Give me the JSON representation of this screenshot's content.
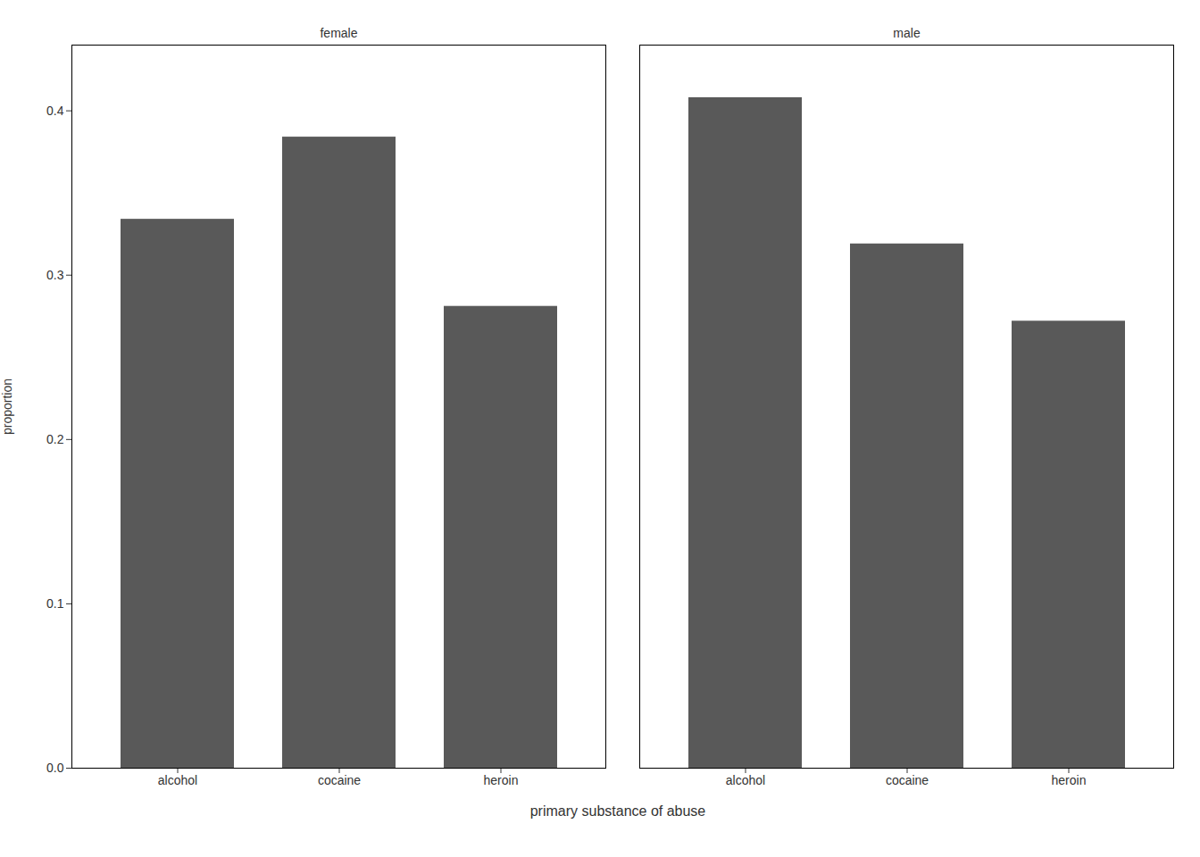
{
  "chart_data": {
    "type": "bar",
    "xlabel": "primary substance of abuse",
    "ylabel": "proportion",
    "categories": [
      "alcohol",
      "cocaine",
      "heroin"
    ],
    "series": [
      {
        "name": "female",
        "values": [
          0.334,
          0.384,
          0.281
        ]
      },
      {
        "name": "male",
        "values": [
          0.408,
          0.319,
          0.272
        ]
      }
    ],
    "color": "#595959",
    "ylim": [
      0,
      0.44
    ],
    "yticks": [
      {
        "value": 0,
        "label": "0.0"
      },
      0.1,
      0.2,
      0.3,
      0.4
    ],
    "grid": false
  }
}
